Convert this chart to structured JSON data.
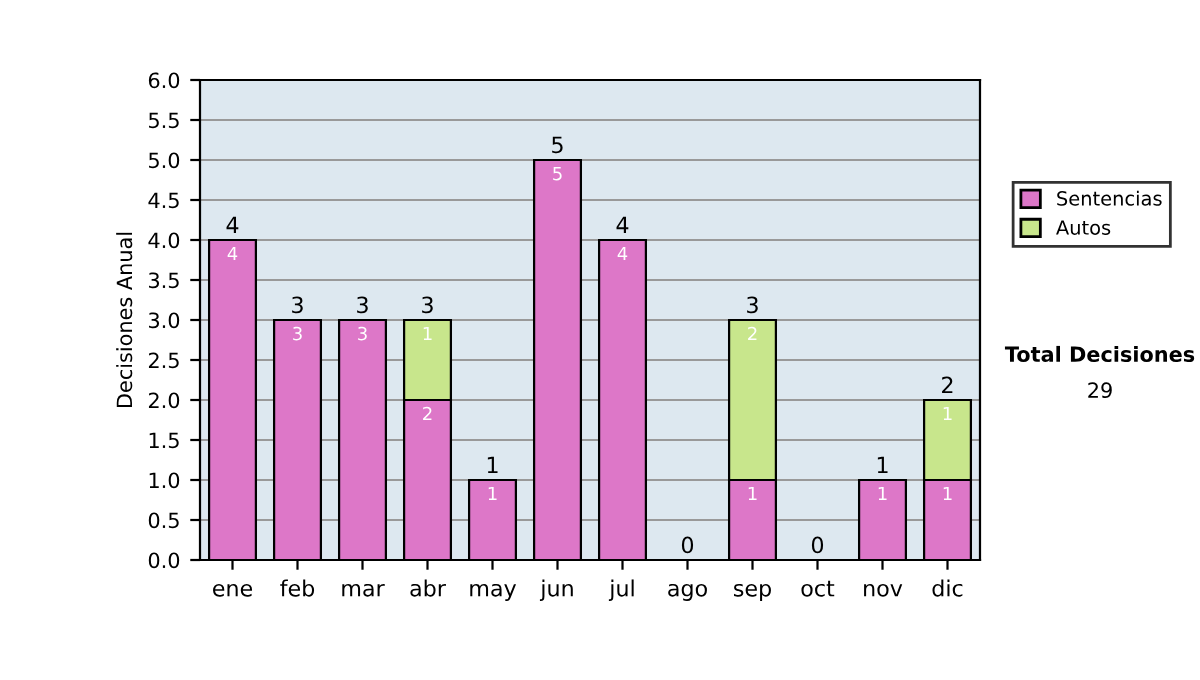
{
  "chart_data": {
    "type": "bar",
    "stacked": true,
    "ylabel": "Decisiones Anual",
    "categories": [
      "ene",
      "feb",
      "mar",
      "abr",
      "may",
      "jun",
      "jul",
      "ago",
      "sep",
      "oct",
      "nov",
      "dic"
    ],
    "series": [
      {
        "name": "Sentencias",
        "color": "#dd77c8",
        "values": [
          4,
          3,
          3,
          2,
          1,
          5,
          4,
          0,
          1,
          0,
          1,
          1
        ],
        "value_labels": [
          "4",
          "3",
          "3",
          "2",
          "1",
          "5",
          "4",
          null,
          "1",
          null,
          "1",
          "1"
        ]
      },
      {
        "name": "Autos",
        "color": "#c8e68c",
        "values": [
          0,
          0,
          0,
          1,
          0,
          0,
          0,
          0,
          2,
          0,
          0,
          1
        ],
        "value_labels": [
          null,
          null,
          null,
          "1",
          null,
          null,
          null,
          null,
          "2",
          null,
          null,
          "1"
        ]
      }
    ],
    "totals": [
      "4",
      "3",
      "3",
      "3",
      "1",
      "5",
      "4",
      "0",
      "3",
      "0",
      "1",
      "2"
    ],
    "ylim": [
      0,
      6
    ],
    "yticks": [
      {
        "value": 0,
        "label": "0.0"
      },
      {
        "value": 0.5,
        "label": "0.5"
      },
      {
        "value": 1,
        "label": "1.0"
      },
      {
        "value": 1.5,
        "label": "1.5"
      },
      {
        "value": 2,
        "label": "2.0"
      },
      {
        "value": 2.5,
        "label": "2.5"
      },
      {
        "value": 3,
        "label": "3.0"
      },
      {
        "value": 3.5,
        "label": "3.5"
      },
      {
        "value": 4,
        "label": "4.0"
      },
      {
        "value": 4.5,
        "label": "4.5"
      },
      {
        "value": 5,
        "label": "5.0"
      },
      {
        "value": 5.5,
        "label": "5.5"
      },
      {
        "value": 6,
        "label": "6.0"
      }
    ],
    "grid": "y",
    "legend": "right",
    "annotations": [
      "Total Decisiones",
      "29"
    ]
  }
}
